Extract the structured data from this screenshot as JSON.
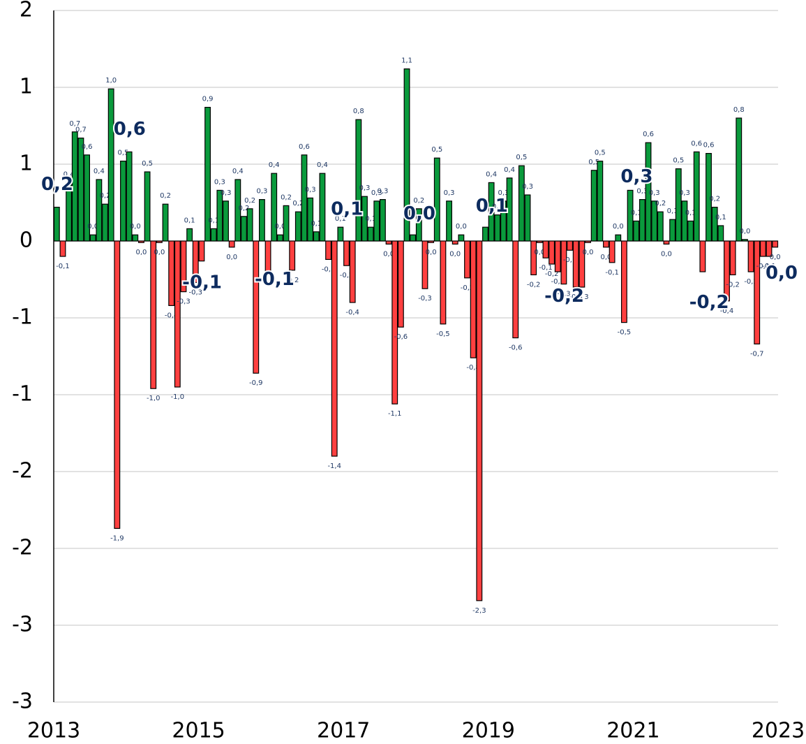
{
  "chart_data": {
    "type": "bar",
    "categories": [
      null,
      null,
      null,
      null,
      null,
      null,
      null,
      null,
      null,
      null,
      null,
      null,
      null,
      null,
      null,
      null,
      null,
      null,
      null,
      null,
      null,
      null,
      null,
      null,
      null,
      null,
      null,
      null,
      null,
      null,
      null,
      null,
      null,
      null,
      null,
      null,
      null,
      null,
      null,
      null,
      null,
      null,
      null,
      null,
      null,
      null,
      null,
      null,
      null,
      null,
      null,
      null,
      null,
      null,
      null,
      null,
      null,
      null,
      null,
      null,
      null,
      null,
      null,
      null,
      null,
      null,
      null,
      null,
      null,
      null,
      null,
      null,
      null,
      null,
      null,
      null,
      null,
      null,
      null,
      null,
      null,
      null,
      null,
      null,
      null,
      null,
      null,
      null,
      null,
      null,
      null,
      null,
      null,
      null,
      null,
      null,
      null,
      null,
      null,
      null,
      null,
      null,
      null,
      null,
      null,
      null,
      null,
      null,
      null,
      null,
      null,
      null,
      null,
      null,
      null,
      null,
      null,
      null,
      null,
      null
    ],
    "values": [
      0.22,
      -0.1,
      0.38,
      0.71,
      0.67,
      0.56,
      0.04,
      0.4,
      0.24,
      0.99,
      -1.87,
      0.52,
      0.58,
      0.04,
      -0.01,
      0.45,
      -0.96,
      -0.01,
      0.24,
      -0.42,
      -0.95,
      -0.33,
      0.08,
      -0.27,
      -0.13,
      0.87,
      0.08,
      0.33,
      0.26,
      -0.04,
      0.4,
      0.16,
      0.21,
      -0.86,
      0.27,
      -0.2,
      0.44,
      0.04,
      0.23,
      -0.19,
      0.19,
      0.56,
      0.28,
      0.06,
      0.44,
      -0.12,
      -1.4,
      0.09,
      -0.16,
      -0.4,
      0.79,
      0.29,
      0.09,
      0.26,
      0.27,
      -0.02,
      -1.06,
      -0.56,
      1.12,
      0.04,
      0.21,
      -0.31,
      -0.01,
      0.54,
      -0.54,
      0.26,
      -0.02,
      0.04,
      -0.24,
      -0.76,
      -2.34,
      0.09,
      0.38,
      0.17,
      0.26,
      0.41,
      -0.63,
      0.49,
      0.3,
      -0.22,
      -0.01,
      -0.11,
      -0.15,
      -0.2,
      -0.28,
      -0.06,
      -0.3,
      -0.3,
      -0.01,
      0.46,
      0.52,
      -0.04,
      -0.14,
      0.04,
      -0.53,
      0.33,
      0.13,
      0.27,
      0.64,
      0.26,
      0.19,
      -0.02,
      0.14,
      0.47,
      0.26,
      0.13,
      0.58,
      -0.2,
      0.57,
      0.22,
      0.1,
      -0.39,
      -0.22,
      0.8,
      0.01,
      -0.2,
      -0.67,
      -0.1,
      -0.1,
      -0.04
    ],
    "value_labels": [
      null,
      "-0,1",
      "0,4",
      "0,7",
      "0,7",
      "0,6",
      "0,0",
      "0,4",
      "0,2",
      "1,0",
      "-1,9",
      "0,5",
      null,
      "0,0",
      "0,0",
      "0,5",
      "-1,0",
      "0,0",
      "0,2",
      "-0,4",
      "-1,0",
      "-0,3",
      "0,1",
      "-0,3",
      null,
      "0,9",
      "0,1",
      "0,3",
      "0,3",
      "0,0",
      "0,4",
      "0,2",
      "0,2",
      "-0,9",
      "0,3",
      "-0,2",
      "0,4",
      "0,0",
      "0,2",
      "-0,2",
      "0,2",
      "0,6",
      "0,3",
      "0,1",
      "0,4",
      "-0,1",
      "-1,4",
      "0,1",
      "-0,2",
      "-0,4",
      "0,8",
      "0,3",
      "0,1",
      "0,3",
      "0,3",
      "0,0",
      "-1,1",
      "-0,6",
      "1,1",
      null,
      "0,2",
      "-0,3",
      "0,0",
      "0,5",
      "-0,5",
      "0,3",
      "0,0",
      "0,0",
      "-0,2",
      "-0,8",
      "-2,3",
      null,
      "0,4",
      "0,2",
      "0,3",
      "0,4",
      "-0,6",
      "0,5",
      "0,3",
      "-0,2",
      "0,0",
      "-0,1",
      "-0,2",
      "-0,2",
      "-0,3",
      "-0,1",
      "-0,3",
      "-0,3",
      "0,0",
      "0,5",
      "0,5",
      "0,0",
      "-0,1",
      "0,0",
      "-0,5",
      null,
      "0,1",
      "0,3",
      "0,6",
      "0,3",
      "0,2",
      "0,0",
      "0,1",
      "0,5",
      "0,3",
      "0,1",
      "0,6",
      null,
      "0,6",
      "0,2",
      "0,1",
      "-0,4",
      "-0,2",
      "0,8",
      "0,0",
      "-0,2",
      "-0,7",
      "-0,1",
      "-0,1",
      "0,0"
    ],
    "positive_color": "#0a9a3c",
    "negative_color": "#ff4040",
    "annual": {
      "x": [
        2013,
        2014,
        2015,
        2016,
        2017,
        2018,
        2019,
        2020,
        2021,
        2022,
        2023
      ],
      "values": [
        0.22,
        0.58,
        -0.09,
        -0.07,
        0.06,
        0.03,
        0.08,
        -0.18,
        0.27,
        -0.22,
        -0.03
      ],
      "value_labels": [
        "0,2",
        "0,6",
        "-0,1",
        "-0,1",
        "0,1",
        "0,0",
        "0,1",
        "-0,2",
        "0,3",
        "-0,2",
        "0,0"
      ]
    },
    "xlim": [
      2013,
      2023
    ],
    "xticks": [
      2013,
      2015,
      2017,
      2019,
      2021,
      2023
    ],
    "ylim": [
      -3,
      1.5
    ],
    "yticks": [
      {
        "value": 1.5,
        "label": "2"
      },
      1,
      {
        "value": 0.5,
        "label": "1"
      },
      0,
      {
        "value": -0.5,
        "label": "-1"
      },
      -1,
      {
        "value": -1.5,
        "label": "-2"
      },
      -2,
      {
        "value": -2.5,
        "label": "-3"
      },
      -3
    ],
    "grid": true
  }
}
